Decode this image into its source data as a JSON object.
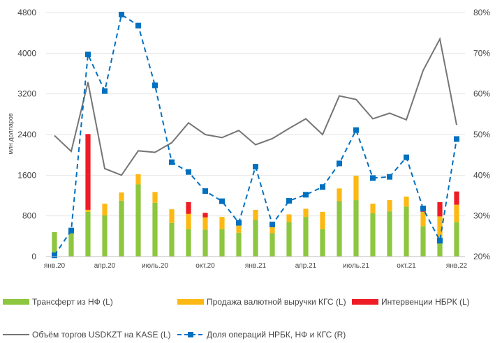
{
  "chart_data": {
    "type": "bar",
    "ylabel": "млн долларов",
    "y_left": {
      "min": 0,
      "max": 4800,
      "ticks": [
        "0",
        "800",
        "1600",
        "2400",
        "3200",
        "4000",
        "4800"
      ]
    },
    "y_right": {
      "min": 20,
      "max": 80,
      "ticks": [
        "20%",
        "30%",
        "40%",
        "50%",
        "60%",
        "70%",
        "80%"
      ]
    },
    "x_tick_labels": [
      {
        "index": 0,
        "label": "янв.20"
      },
      {
        "index": 3,
        "label": "апр.20"
      },
      {
        "index": 6,
        "label": "июль.20"
      },
      {
        "index": 9,
        "label": "окт.20"
      },
      {
        "index": 12,
        "label": "янв.21"
      },
      {
        "index": 15,
        "label": "апр.21"
      },
      {
        "index": 18,
        "label": "июль.21"
      },
      {
        "index": 21,
        "label": "окт.21"
      },
      {
        "index": 24,
        "label": "янв.22"
      }
    ],
    "series": [
      {
        "name": "Трансферт из НФ (L)",
        "kind": "bar",
        "color": "#8dc63f",
        "values": [
          480,
          460,
          880,
          810,
          1100,
          1420,
          1060,
          660,
          540,
          530,
          540,
          470,
          720,
          460,
          680,
          780,
          540,
          1090,
          1110,
          850,
          890,
          980,
          600,
          380,
          680
        ]
      },
      {
        "name": "Продажа валютной выручки КГС (L)",
        "kind": "bar",
        "color": "#fdb913",
        "values": [
          0,
          0,
          40,
          230,
          160,
          200,
          210,
          270,
          300,
          240,
          240,
          140,
          200,
          170,
          150,
          160,
          340,
          250,
          480,
          190,
          220,
          200,
          280,
          410,
          340
        ]
      },
      {
        "name": "Интервенции НБРК (L)",
        "kind": "bar",
        "color": "#ee1c25",
        "values": [
          0,
          0,
          1490,
          0,
          0,
          0,
          0,
          0,
          230,
          90,
          0,
          0,
          0,
          0,
          0,
          0,
          0,
          0,
          0,
          0,
          0,
          0,
          120,
          280,
          260
        ]
      },
      {
        "name": "Объём торгов USDKZT на KASE (L)",
        "kind": "line",
        "color": "#757575",
        "values": [
          2380,
          2070,
          3430,
          1730,
          1600,
          2080,
          2050,
          2240,
          2630,
          2400,
          2340,
          2480,
          2200,
          2320,
          2520,
          2710,
          2400,
          3160,
          3090,
          2710,
          2820,
          2690,
          3660,
          4280,
          2590
        ]
      },
      {
        "name": "Доля операций НРБК, НФ и КГС (R)",
        "kind": "line",
        "color": "#0070c0",
        "values": [
          20.3,
          26.4,
          69.7,
          60.7,
          79.5,
          76.8,
          62.1,
          43.2,
          40.8,
          36.1,
          33.6,
          28.3,
          42.1,
          27.9,
          33.7,
          35.2,
          37.1,
          42.9,
          51.1,
          39.3,
          39.6,
          44.4,
          31.8,
          23.9,
          48.9
        ]
      }
    ]
  }
}
